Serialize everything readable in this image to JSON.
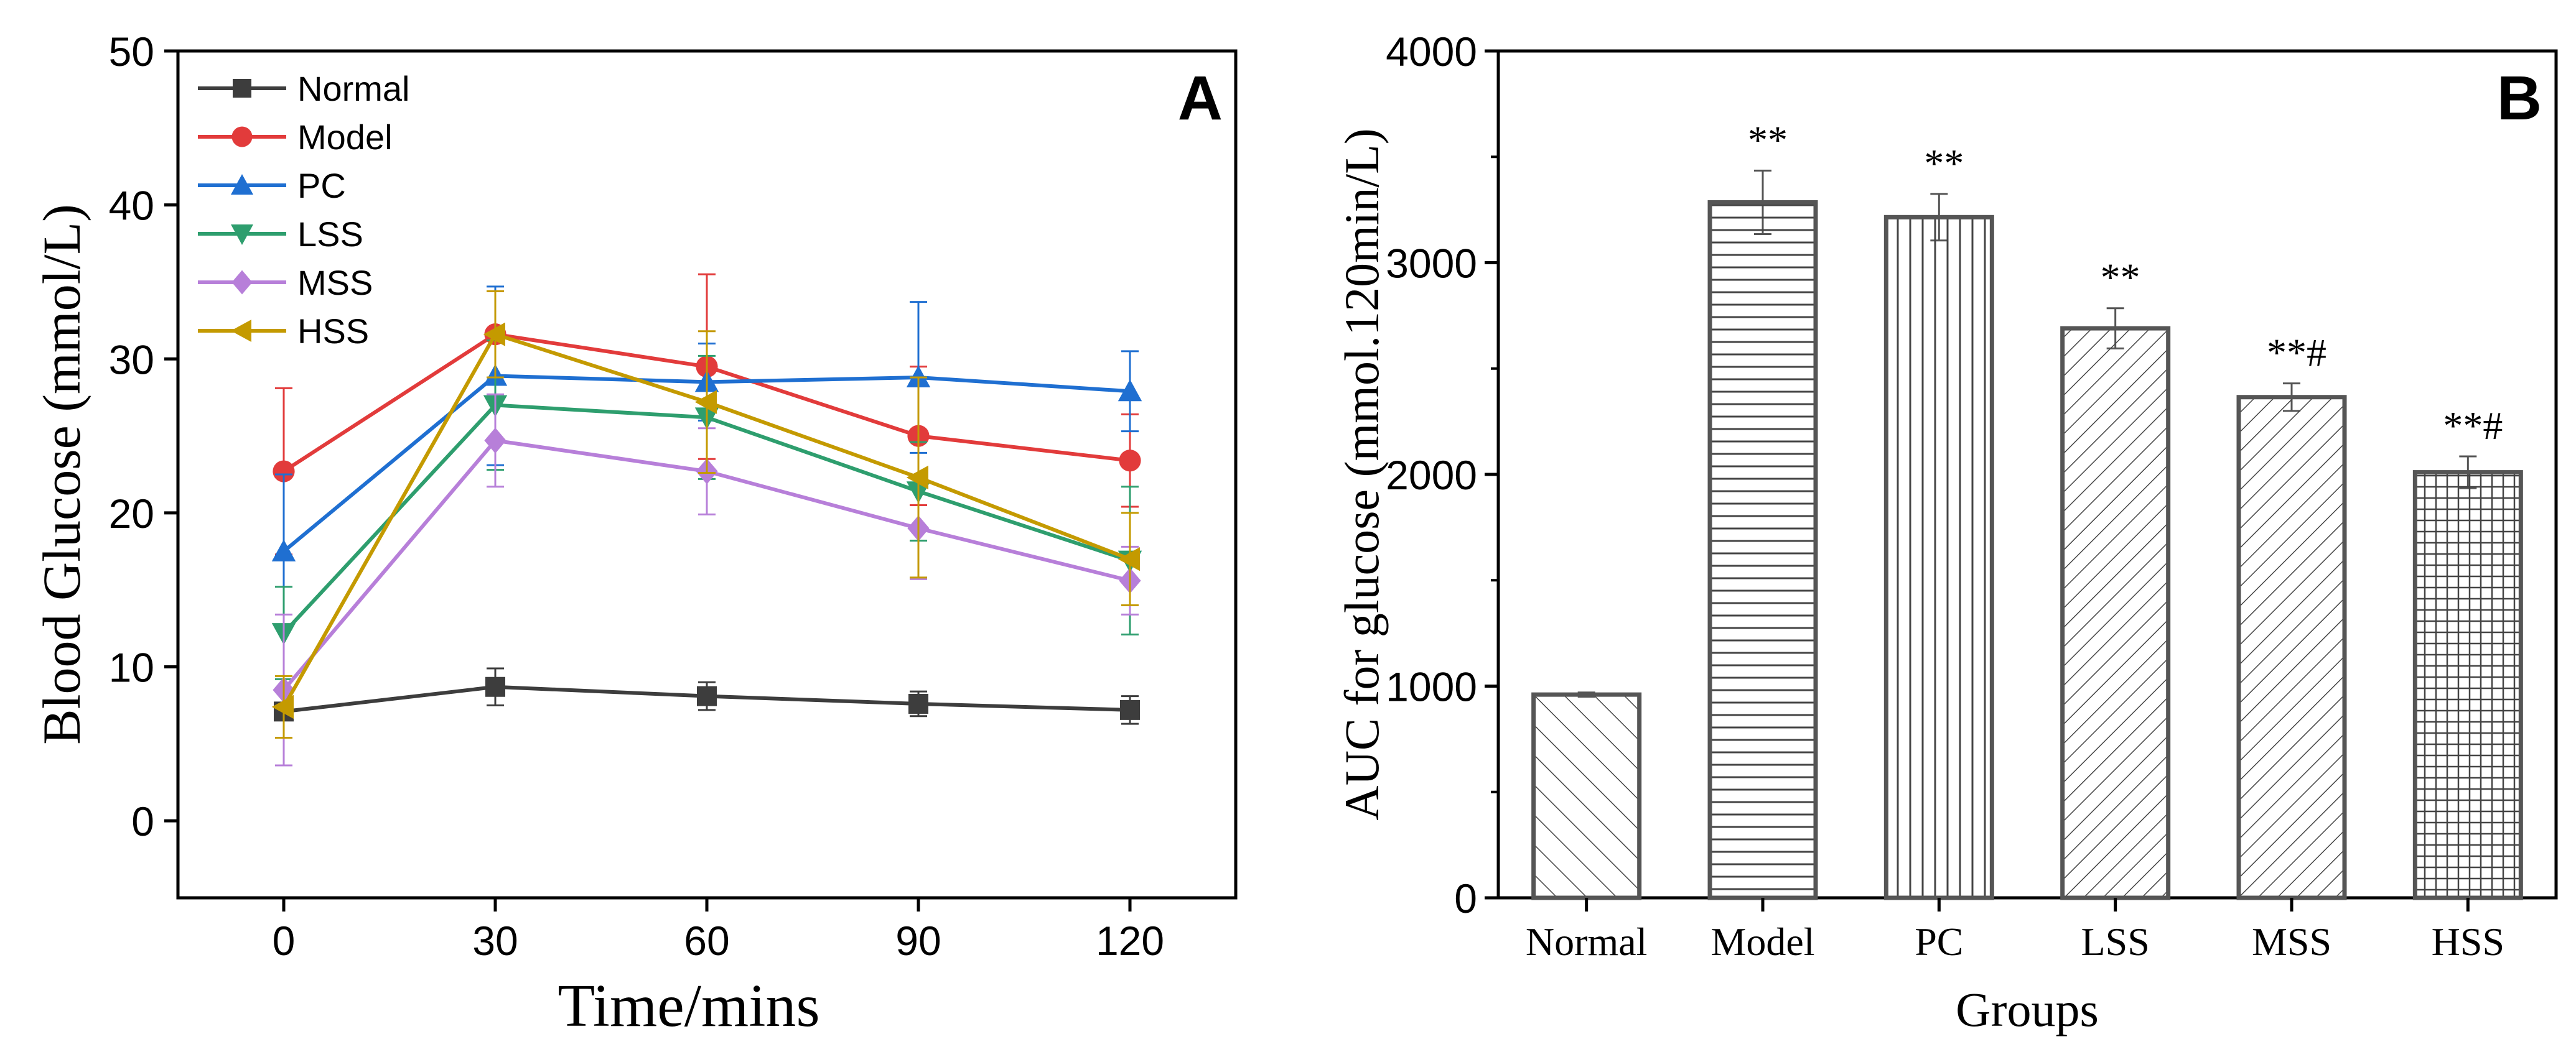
{
  "chart_data": [
    {
      "panel_label": "A",
      "type": "line",
      "xlabel": "Time/mins",
      "ylabel": "Blood Glucose (mmol/L)",
      "x": [
        0,
        30,
        60,
        90,
        120
      ],
      "xticks": [
        "0",
        "30",
        "60",
        "90",
        "120"
      ],
      "xlim": [
        -15,
        135
      ],
      "ylim": [
        -5,
        50
      ],
      "yticks": [
        "0",
        "10",
        "20",
        "30",
        "40",
        "50"
      ],
      "legend_position": "top-left",
      "series": [
        {
          "name": "Normal",
          "color": "#3d3d3d",
          "marker": "square",
          "values": [
            7.1,
            8.7,
            8.1,
            7.6,
            7.2
          ],
          "errors": [
            0.5,
            1.2,
            0.9,
            0.8,
            0.9
          ]
        },
        {
          "name": "Model",
          "color": "#e23b3b",
          "marker": "circle",
          "values": [
            22.7,
            31.6,
            29.5,
            25.0,
            23.4
          ],
          "errors": [
            5.4,
            2.8,
            6.0,
            4.5,
            3.0
          ]
        },
        {
          "name": "PC",
          "color": "#1f6fd1",
          "marker": "triangle-up",
          "values": [
            17.5,
            28.9,
            28.5,
            28.8,
            27.9
          ],
          "errors": [
            5.0,
            5.8,
            2.5,
            4.9,
            2.6
          ]
        },
        {
          "name": "LSS",
          "color": "#2e9e6e",
          "marker": "triangle-down",
          "values": [
            12.2,
            27.0,
            26.2,
            21.4,
            16.9
          ],
          "errors": [
            3.0,
            4.2,
            4.0,
            3.2,
            4.8
          ]
        },
        {
          "name": "MSS",
          "color": "#b77fd9",
          "marker": "diamond",
          "values": [
            8.5,
            24.7,
            22.7,
            19.0,
            15.6
          ],
          "errors": [
            4.9,
            3.0,
            2.8,
            3.3,
            2.2
          ]
        },
        {
          "name": "HSS",
          "color": "#c49a00",
          "marker": "triangle-left",
          "values": [
            7.4,
            31.6,
            27.2,
            22.3,
            17.0
          ],
          "errors": [
            2.0,
            2.8,
            4.6,
            6.5,
            3.0
          ]
        }
      ]
    },
    {
      "panel_label": "B",
      "type": "bar",
      "xlabel": "Groups",
      "ylabel": "AUC for glucose (mmol.120min/L)",
      "categories": [
        "Normal",
        "Model",
        "PC",
        "LSS",
        "MSS",
        "HSS"
      ],
      "values": [
        960,
        3285,
        3215,
        2690,
        2365,
        2010
      ],
      "errors": [
        10,
        150,
        110,
        95,
        65,
        75
      ],
      "annotations": [
        "",
        "**",
        "**",
        "**",
        "**#",
        "**#"
      ],
      "patterns": [
        "back-diagonal",
        "horizontal",
        "vertical",
        "diagonal",
        "diagonal",
        "grid"
      ],
      "ylim": [
        0,
        4000
      ],
      "yticks": [
        "0",
        "1000",
        "2000",
        "3000",
        "4000"
      ],
      "bar_outline_color": "#555555"
    }
  ]
}
